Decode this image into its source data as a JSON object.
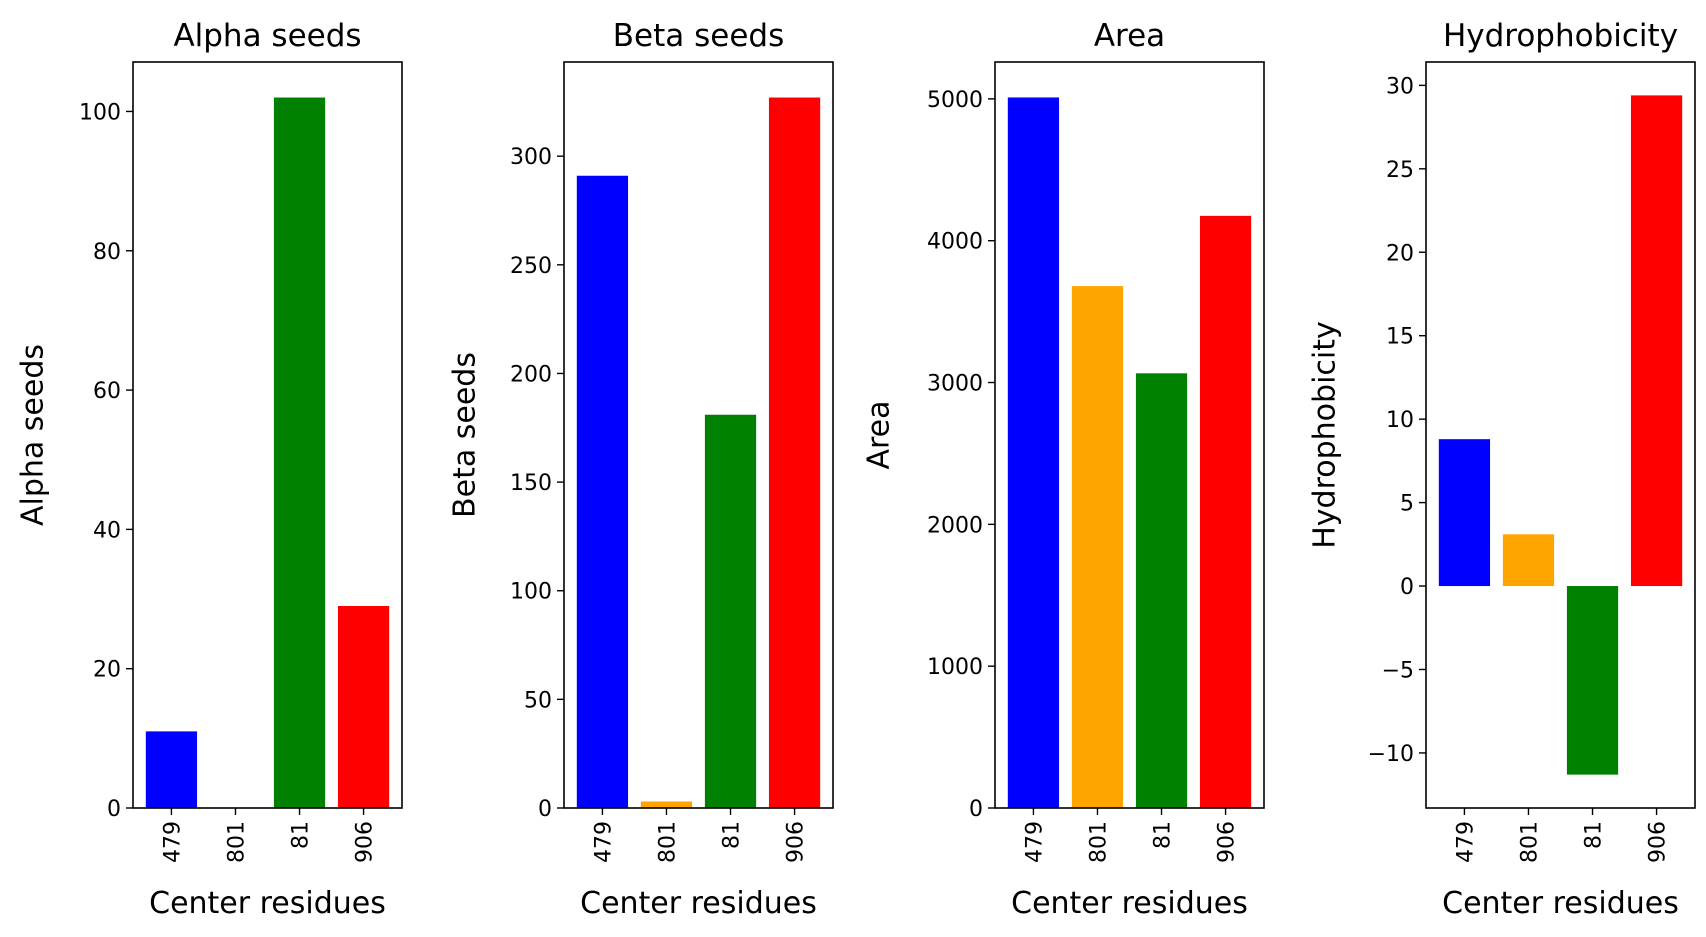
{
  "chart_data": [
    {
      "type": "bar",
      "title": "Alpha seeds",
      "xlabel": "Center residues",
      "ylabel": "Alpha seeds",
      "categories": [
        "479",
        "801",
        "81",
        "906"
      ],
      "values": [
        11,
        0,
        102,
        29
      ],
      "colors": [
        "#0000ff",
        "#ffa500",
        "#008000",
        "#ff0000"
      ],
      "ylim": [
        0,
        107.1
      ],
      "yticks": [
        0,
        20,
        40,
        60,
        80,
        100
      ]
    },
    {
      "type": "bar",
      "title": "Beta seeds",
      "xlabel": "Center residues",
      "ylabel": "Beta seeds",
      "categories": [
        "479",
        "801",
        "81",
        "906"
      ],
      "values": [
        291,
        3,
        181,
        327
      ],
      "colors": [
        "#0000ff",
        "#ffa500",
        "#008000",
        "#ff0000"
      ],
      "ylim": [
        0,
        343.35
      ],
      "yticks": [
        0,
        50,
        100,
        150,
        200,
        250,
        300
      ]
    },
    {
      "type": "bar",
      "title": "Area",
      "xlabel": "Center residues",
      "ylabel": "Area",
      "categories": [
        "479",
        "801",
        "81",
        "906"
      ],
      "values": [
        5010,
        3680,
        3065,
        4175
      ],
      "colors": [
        "#0000ff",
        "#ffa500",
        "#008000",
        "#ff0000"
      ],
      "ylim": [
        0,
        5260
      ],
      "yticks": [
        0,
        1000,
        2000,
        3000,
        4000,
        5000
      ]
    },
    {
      "type": "bar",
      "title": "Hydrophobicity",
      "xlabel": "Center residues",
      "ylabel": "Hydrophobicity",
      "categories": [
        "479",
        "801",
        "81",
        "906"
      ],
      "values": [
        8.8,
        3.1,
        -11.3,
        29.4
      ],
      "colors": [
        "#0000ff",
        "#ffa500",
        "#008000",
        "#ff0000"
      ],
      "ylim": [
        -13.3,
        31.4
      ],
      "yticks": [
        -10,
        -5,
        0,
        5,
        10,
        15,
        20,
        25,
        30
      ]
    }
  ]
}
